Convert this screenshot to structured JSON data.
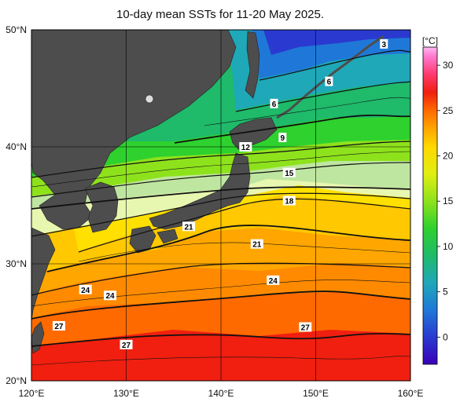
{
  "title": "10-day mean SSTs for 11-20 May 2025.",
  "map": {
    "lon_range": [
      120,
      160
    ],
    "lat_range": [
      20,
      50
    ],
    "x_ticks": [
      {
        "lon": 120,
        "label": "120°E"
      },
      {
        "lon": 130,
        "label": "130°E"
      },
      {
        "lon": 140,
        "label": "140°E"
      },
      {
        "lon": 150,
        "label": "150°E"
      },
      {
        "lon": 160,
        "label": "160°E"
      }
    ],
    "y_ticks": [
      {
        "lat": 50,
        "label": "50°N"
      },
      {
        "lat": 40,
        "label": "40°N"
      },
      {
        "lat": 30,
        "label": "30°N"
      },
      {
        "lat": 20,
        "label": "20°N"
      }
    ],
    "land_color": "#4d4d4d",
    "isotherm_labels": [
      {
        "text": "3",
        "lon": 157.2,
        "lat": 48.8
      },
      {
        "text": "6",
        "lon": 151.4,
        "lat": 45.6
      },
      {
        "text": "6",
        "lon": 145.6,
        "lat": 43.7
      },
      {
        "text": "9",
        "lon": 146.5,
        "lat": 40.8
      },
      {
        "text": "12",
        "lon": 142.6,
        "lat": 40.0
      },
      {
        "text": "15",
        "lon": 147.2,
        "lat": 37.8
      },
      {
        "text": "18",
        "lon": 147.2,
        "lat": 35.4
      },
      {
        "text": "21",
        "lon": 136.6,
        "lat": 33.2
      },
      {
        "text": "21",
        "lon": 143.8,
        "lat": 31.7
      },
      {
        "text": "24",
        "lon": 145.5,
        "lat": 28.6
      },
      {
        "text": "24",
        "lon": 125.7,
        "lat": 27.8
      },
      {
        "text": "24",
        "lon": 128.3,
        "lat": 27.3
      },
      {
        "text": "27",
        "lon": 122.9,
        "lat": 24.7
      },
      {
        "text": "27",
        "lon": 148.9,
        "lat": 24.6
      },
      {
        "text": "27",
        "lon": 130.0,
        "lat": 23.1
      }
    ]
  },
  "colorbar": {
    "unit": "[°C]",
    "min": -3,
    "max": 32,
    "ticks": [
      {
        "value": 30,
        "label": "30"
      },
      {
        "value": 25,
        "label": "25"
      },
      {
        "value": 20,
        "label": "20"
      },
      {
        "value": 15,
        "label": "15"
      },
      {
        "value": 10,
        "label": "10"
      },
      {
        "value": 5,
        "label": "5"
      },
      {
        "value": 0,
        "label": "0"
      }
    ],
    "stops": [
      {
        "value": -3,
        "color": "#3a00b8"
      },
      {
        "value": 0,
        "color": "#2a3ad0"
      },
      {
        "value": 3,
        "color": "#1f78d8"
      },
      {
        "value": 6,
        "color": "#1fa8b8"
      },
      {
        "value": 9,
        "color": "#1fba6a"
      },
      {
        "value": 12,
        "color": "#2ed12e"
      },
      {
        "value": 15,
        "color": "#8ee21c"
      },
      {
        "value": 18,
        "color": "#e0ee12"
      },
      {
        "value": 21,
        "color": "#ffd800"
      },
      {
        "value": 23,
        "color": "#ffa600"
      },
      {
        "value": 25,
        "color": "#ff6a00"
      },
      {
        "value": 27,
        "color": "#f01f10"
      },
      {
        "value": 29,
        "color": "#ff3a70"
      },
      {
        "value": 31,
        "color": "#ff7ad0"
      },
      {
        "value": 32,
        "color": "#ffb8f0"
      }
    ]
  }
}
